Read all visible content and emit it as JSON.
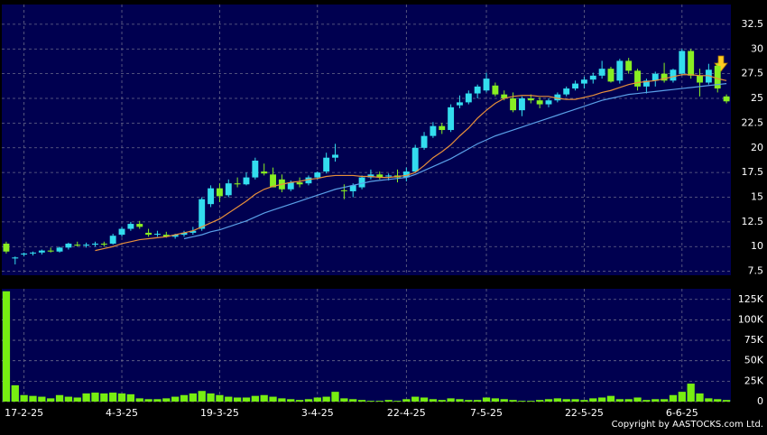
{
  "chart_data": [
    {
      "type": "candlestick",
      "up_color": "#33ddee",
      "down_color": "#88ee22",
      "open": [
        10.3,
        8.8,
        9.2,
        9.3,
        9.4,
        9.6,
        9.5,
        9.9,
        10.2,
        10.1,
        10.2,
        10.3,
        10.3,
        11.2,
        11.8,
        12.3,
        11.4,
        11.3,
        11.2,
        11.0,
        11.2,
        11.4,
        11.8,
        14.3,
        15.9,
        15.2,
        16.4,
        16.3,
        17.0,
        17.6,
        17.3,
        16.8,
        15.8,
        16.5,
        16.4,
        17.0,
        17.6,
        19.0,
        15.7,
        15.6,
        16.0,
        17.0,
        17.3,
        17.1,
        17.2,
        17.0,
        17.6,
        20.0,
        21.2,
        22.2,
        21.8,
        24.3,
        24.6,
        25.5,
        25.8,
        26.3,
        25.4,
        25.0,
        23.8,
        25.0,
        24.8,
        24.4,
        24.8,
        25.4,
        26.0,
        26.5,
        26.9,
        27.3,
        28.0,
        26.8,
        28.8,
        27.8,
        26.2,
        26.8,
        27.5,
        26.8,
        27.5,
        29.8,
        27.3,
        26.6,
        28.3,
        25.2
      ],
      "high": [
        10.5,
        9.0,
        9.4,
        9.5,
        9.7,
        9.9,
        10.0,
        10.4,
        10.5,
        10.4,
        10.5,
        10.5,
        11.3,
        12.0,
        12.5,
        12.6,
        11.8,
        11.6,
        11.5,
        11.3,
        11.6,
        12.0,
        15.0,
        16.2,
        16.4,
        16.8,
        17.0,
        17.5,
        19.0,
        18.4,
        18.0,
        17.3,
        16.7,
        17.0,
        17.2,
        17.6,
        19.5,
        20.4,
        16.3,
        16.4,
        17.2,
        17.8,
        17.6,
        17.4,
        17.8,
        18.0,
        20.3,
        21.6,
        22.6,
        22.5,
        24.4,
        25.3,
        25.8,
        26.4,
        27.6,
        26.6,
        25.8,
        25.6,
        25.2,
        25.4,
        25.1,
        25.0,
        25.6,
        26.2,
        26.8,
        27.2,
        27.6,
        28.8,
        28.2,
        29.0,
        29.1,
        28.0,
        27.0,
        27.7,
        28.6,
        28.0,
        30.0,
        30.0,
        28.0,
        28.5,
        28.6,
        25.4
      ],
      "low": [
        9.3,
        8.2,
        9.0,
        9.1,
        9.2,
        9.4,
        9.4,
        9.7,
        10.0,
        9.9,
        10.0,
        10.0,
        10.2,
        11.0,
        11.6,
        11.8,
        11.0,
        11.0,
        10.9,
        10.8,
        11.0,
        11.2,
        11.6,
        14.0,
        14.5,
        15.0,
        16.0,
        16.2,
        16.8,
        17.2,
        16.0,
        15.5,
        15.6,
        16.0,
        16.2,
        16.8,
        17.4,
        18.6,
        14.8,
        15.0,
        15.8,
        16.8,
        16.8,
        16.7,
        16.5,
        16.6,
        17.5,
        19.8,
        21.0,
        21.4,
        21.6,
        24.0,
        24.4,
        25.0,
        25.6,
        25.2,
        24.8,
        23.6,
        23.2,
        24.5,
        24.0,
        24.1,
        24.6,
        25.2,
        25.8,
        26.0,
        26.5,
        27.0,
        26.6,
        26.5,
        27.5,
        25.8,
        25.5,
        26.2,
        26.6,
        26.6,
        27.3,
        27.0,
        25.2,
        26.4,
        25.6,
        24.5
      ],
      "close": [
        9.5,
        8.9,
        9.3,
        9.4,
        9.6,
        9.5,
        9.9,
        10.3,
        10.1,
        10.2,
        10.3,
        10.2,
        11.1,
        11.8,
        12.3,
        12.0,
        11.2,
        11.3,
        11.0,
        11.2,
        11.4,
        11.6,
        14.8,
        15.9,
        15.1,
        16.4,
        16.3,
        17.0,
        18.7,
        17.4,
        16.0,
        15.8,
        16.5,
        16.3,
        17.0,
        17.5,
        19.0,
        19.3,
        15.6,
        16.2,
        17.0,
        17.3,
        17.0,
        17.2,
        17.0,
        17.6,
        20.0,
        21.2,
        22.2,
        21.8,
        24.1,
        24.6,
        25.5,
        26.2,
        27.0,
        25.4,
        25.0,
        23.8,
        25.0,
        24.8,
        24.4,
        24.8,
        25.4,
        26.0,
        26.5,
        26.9,
        27.3,
        28.0,
        26.7,
        28.8,
        27.8,
        26.2,
        26.8,
        27.5,
        26.8,
        27.9,
        29.8,
        27.3,
        26.6,
        27.9,
        26.0,
        24.7
      ],
      "series": [
        {
          "color": "#e8903a",
          "values": [
            null,
            null,
            null,
            null,
            null,
            null,
            null,
            null,
            null,
            null,
            9.6,
            9.8,
            10.0,
            10.3,
            10.5,
            10.7,
            10.8,
            10.9,
            11.0,
            11.2,
            11.4,
            11.6,
            12.0,
            12.4,
            12.8,
            13.4,
            14.0,
            14.6,
            15.3,
            15.8,
            16.1,
            16.3,
            16.5,
            16.6,
            16.8,
            16.9,
            17.1,
            17.2,
            17.2,
            17.2,
            17.1,
            17.1,
            17.0,
            17.0,
            17.1,
            17.2,
            17.5,
            18.2,
            19.0,
            19.6,
            20.3,
            21.2,
            22.0,
            23.0,
            23.8,
            24.5,
            25.0,
            25.2,
            25.3,
            25.3,
            25.2,
            25.2,
            25.0,
            24.9,
            24.9,
            25.1,
            25.3,
            25.6,
            25.8,
            26.1,
            26.4,
            26.6,
            26.7,
            26.8,
            27.0,
            27.2,
            27.4,
            27.4,
            27.3,
            27.3,
            27.0,
            26.8
          ]
        },
        {
          "color": "#5aa0e8",
          "values": [
            null,
            null,
            null,
            null,
            null,
            null,
            null,
            null,
            null,
            null,
            null,
            null,
            null,
            null,
            null,
            null,
            null,
            null,
            null,
            null,
            10.8,
            11.0,
            11.2,
            11.5,
            11.7,
            12.0,
            12.3,
            12.6,
            13.0,
            13.4,
            13.7,
            14.0,
            14.3,
            14.6,
            14.9,
            15.2,
            15.5,
            15.8,
            16.0,
            16.2,
            16.4,
            16.6,
            16.7,
            16.8,
            16.9,
            17.0,
            17.3,
            17.7,
            18.1,
            18.5,
            18.9,
            19.4,
            19.9,
            20.4,
            20.8,
            21.2,
            21.5,
            21.8,
            22.1,
            22.4,
            22.7,
            23.0,
            23.3,
            23.6,
            23.9,
            24.2,
            24.5,
            24.8,
            25.0,
            25.2,
            25.4,
            25.5,
            25.6,
            25.7,
            25.8,
            25.9,
            26.0,
            26.1,
            26.2,
            26.3,
            26.4,
            26.5
          ]
        }
      ],
      "ylim": [
        7.1,
        34.5
      ],
      "yticks": [
        7.5,
        10,
        12.5,
        15,
        17.5,
        20,
        22.5,
        25,
        27.5,
        30,
        32.5
      ],
      "grid": true
    },
    {
      "type": "bar",
      "color": "#77ee11",
      "categories": [
        null,
        null,
        "17-2-25",
        null,
        null,
        null,
        null,
        null,
        null,
        null,
        null,
        null,
        null,
        "4-3-25",
        null,
        null,
        null,
        null,
        null,
        null,
        null,
        null,
        null,
        null,
        "19-3-25",
        null,
        null,
        null,
        null,
        null,
        null,
        null,
        null,
        null,
        null,
        "3-4-25",
        null,
        null,
        null,
        null,
        null,
        null,
        null,
        null,
        null,
        "22-4-25",
        null,
        null,
        null,
        null,
        null,
        null,
        null,
        null,
        "7-5-25",
        null,
        null,
        null,
        null,
        null,
        null,
        null,
        null,
        null,
        null,
        "22-5-25",
        null,
        null,
        null,
        null,
        null,
        null,
        null,
        null,
        null,
        null,
        "6-6-25",
        null,
        null,
        null,
        null,
        null
      ],
      "values": [
        135000,
        20000,
        8000,
        7000,
        6000,
        4000,
        8000,
        6000,
        5000,
        10000,
        11000,
        10000,
        11000,
        10000,
        9000,
        4000,
        3000,
        3000,
        4000,
        6000,
        8000,
        10000,
        13000,
        10000,
        8000,
        6000,
        5000,
        5000,
        7000,
        8000,
        6000,
        4000,
        3000,
        2000,
        3000,
        5000,
        6000,
        12000,
        4000,
        3000,
        2000,
        1000,
        1000,
        2000,
        1000,
        3000,
        6000,
        5000,
        3000,
        2000,
        4000,
        3000,
        2000,
        2000,
        5000,
        4000,
        3000,
        2000,
        1000,
        1000,
        2000,
        3000,
        4000,
        3000,
        3000,
        2000,
        4000,
        5000,
        7000,
        3000,
        3000,
        5000,
        2000,
        3000,
        3000,
        8000,
        12000,
        22000,
        10000,
        4000,
        3000,
        2000
      ],
      "ylim": [
        0,
        138000
      ],
      "yticks": [
        0,
        {
          "value": 25000,
          "label": "25K"
        },
        {
          "value": 50000,
          "label": "50K"
        },
        {
          "value": 75000,
          "label": "75K"
        },
        {
          "value": 100000,
          "label": "100K"
        },
        {
          "value": 125000,
          "label": "125K"
        }
      ],
      "grid": true
    }
  ],
  "footer": "Copyright by AASTOCKS.com Ltd."
}
